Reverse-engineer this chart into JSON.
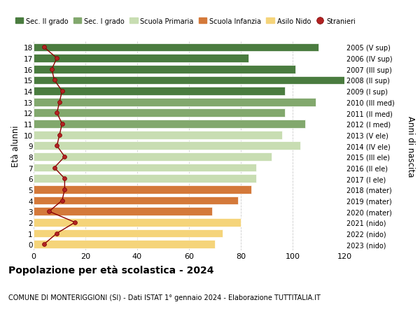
{
  "ages": [
    18,
    17,
    16,
    15,
    14,
    13,
    12,
    11,
    10,
    9,
    8,
    7,
    6,
    5,
    4,
    3,
    2,
    1,
    0
  ],
  "bar_values": [
    110,
    83,
    101,
    120,
    97,
    109,
    97,
    105,
    96,
    103,
    92,
    86,
    86,
    84,
    79,
    69,
    80,
    73,
    70
  ],
  "right_labels": [
    "2005 (V sup)",
    "2006 (IV sup)",
    "2007 (III sup)",
    "2008 (II sup)",
    "2009 (I sup)",
    "2010 (III med)",
    "2011 (II med)",
    "2012 (I med)",
    "2013 (V ele)",
    "2014 (IV ele)",
    "2015 (III ele)",
    "2016 (II ele)",
    "2017 (I ele)",
    "2018 (mater)",
    "2019 (mater)",
    "2020 (mater)",
    "2021 (nido)",
    "2022 (nido)",
    "2023 (nido)"
  ],
  "bar_colors": [
    "#4a7c3f",
    "#4a7c3f",
    "#4a7c3f",
    "#4a7c3f",
    "#4a7c3f",
    "#82a86d",
    "#82a86d",
    "#82a86d",
    "#c8ddb2",
    "#c8ddb2",
    "#c8ddb2",
    "#c8ddb2",
    "#c8ddb2",
    "#d4793a",
    "#d4793a",
    "#d4793a",
    "#f5d47a",
    "#f5d47a",
    "#f5d47a"
  ],
  "stranieri_values": [
    4,
    9,
    7,
    8,
    11,
    10,
    9,
    11,
    10,
    9,
    12,
    8,
    12,
    12,
    11,
    6,
    16,
    9,
    4
  ],
  "legend_labels": [
    "Sec. II grado",
    "Sec. I grado",
    "Scuola Primaria",
    "Scuola Infanzia",
    "Asilo Nido",
    "Stranieri"
  ],
  "legend_colors": [
    "#4a7c3f",
    "#82a86d",
    "#c8ddb2",
    "#d4793a",
    "#f5d47a",
    "#b22222"
  ],
  "ylabel": "Età alunni",
  "right_ylabel": "Anni di nascita",
  "title": "Popolazione per età scolastica - 2024",
  "subtitle": "COMUNE DI MONTERIGGIONI (SI) - Dati ISTAT 1° gennaio 2024 - Elaborazione TUTTITALIA.IT",
  "xlim": [
    0,
    120
  ],
  "xticks": [
    0,
    20,
    40,
    60,
    80,
    100,
    120
  ],
  "background_color": "#ffffff",
  "grid_color": "#cccccc",
  "bar_height": 0.75
}
